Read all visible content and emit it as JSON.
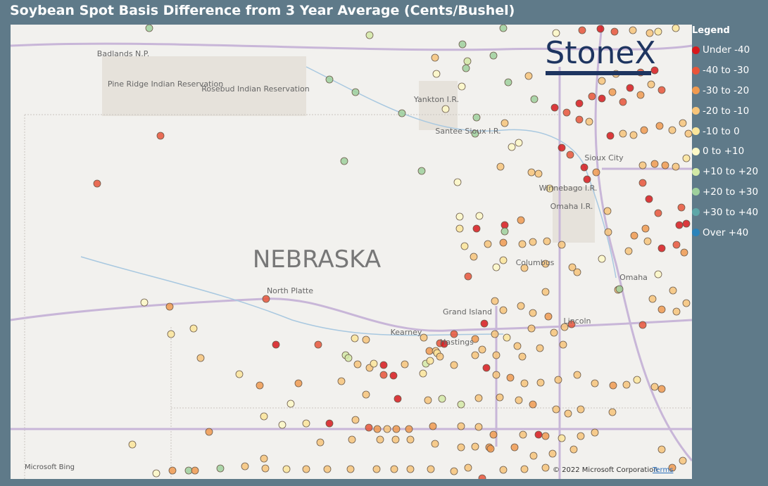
{
  "title": "Soybean Spot Basis Difference from 3 Year Average (Cents/Bushel)",
  "legend": {
    "title": "Legend",
    "items": [
      {
        "label": "Under -40",
        "color": "#d7191c"
      },
      {
        "label": "-40 to -30",
        "color": "#e8553a"
      },
      {
        "label": "-30 to -20",
        "color": "#f09a50"
      },
      {
        "label": "-20 to -10",
        "color": "#f7c47a"
      },
      {
        "label": "-10 to 0",
        "color": "#fbe59a"
      },
      {
        "label": "0 to +10",
        "color": "#fdf8c6"
      },
      {
        "label": "+10 to +20",
        "color": "#d3e9a6"
      },
      {
        "label": "+20 to +30",
        "color": "#9fd09c"
      },
      {
        "label": "+30 to +40",
        "color": "#5ea7a8"
      },
      {
        "label": "Over +40",
        "color": "#2b83ba"
      }
    ]
  },
  "map": {
    "state_label": "NEBRASKA",
    "places": [
      "Badlands N.P.",
      "Pine Ridge Indian Reservation",
      "Rosebud Indian Reservation",
      "Yankton I.R.",
      "Santee Sioux I.R.",
      "Sioux City",
      "Winnebago I.R.",
      "Omaha I.R.",
      "Columbus",
      "Omaha",
      "North Platte",
      "Grand Island",
      "Kearney",
      "Hastings",
      "Lincoln"
    ],
    "logo": "StoneX",
    "provider": "Microsoft Bing",
    "copyright": "© 2022 Microsoft Corporation",
    "terms": "Terms"
  }
}
